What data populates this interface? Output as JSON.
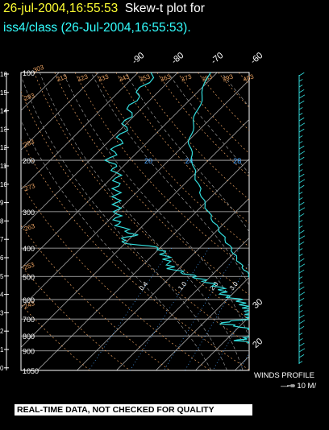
{
  "title": {
    "line1_time": "26-jul-2004,16:55:53",
    "line1_rest": "Skew-t plot for",
    "line2": "iss4/class (26-Jul-2004,16:55:53)."
  },
  "banner": "REAL-TIME DATA, NOT CHECKED FOR QUALITY",
  "winds": {
    "title": "WINDS PROFILE",
    "scale": "— = 10 M/"
  },
  "colors": {
    "background": "#000000",
    "frame": "#ffffff",
    "isotherm_isobar": "#bbbbbb",
    "dry_adiabat": "#e8a060",
    "moist_adiabat": "#aaaaaa",
    "mixing_ratio": "#4da6ff",
    "sounding": "#33dddd",
    "title_time": "#ffff33",
    "title_station": "#33ffff"
  },
  "chart_data": {
    "type": "line",
    "diagram": "skew-t",
    "pressure_levels": [
      100,
      200,
      300,
      400,
      500,
      600,
      700,
      800,
      900,
      1050
    ],
    "pressure_labels": [
      "100",
      "200",
      "300",
      "400",
      "500",
      "600",
      "700",
      "800",
      "900",
      "1050"
    ],
    "ylim_hpa": [
      1050,
      100
    ],
    "height_km_labels": [
      "16",
      "15",
      "14",
      "13",
      "12",
      "11",
      "10",
      "9",
      "8",
      "7",
      "6",
      "5",
      "4",
      "3",
      "2",
      "1",
      "0"
    ],
    "isotherm_top_labels": [
      "-90",
      "-80",
      "-70",
      "-60",
      "-50",
      "-40",
      "-30"
    ],
    "isotherm_right_labels": [
      "-20",
      "-10",
      "0",
      "10",
      "20",
      "30"
    ],
    "dry_adiabat_labels": [
      "243",
      "253",
      "263",
      "273",
      "283",
      "293",
      "303",
      "313",
      "323",
      "333",
      "343",
      "353",
      "363",
      "373",
      "383",
      "393",
      "403",
      "413",
      "423",
      "433",
      "443",
      "453"
    ],
    "mixing_ratio_labels": [
      "0.4",
      "1.0",
      "2.0",
      "3.0",
      "5.0",
      "8.0",
      "12.0",
      "20.0"
    ],
    "moist_adiabat_labels": [
      "20",
      "24",
      "28",
      "32",
      "36"
    ],
    "series": [
      {
        "name": "temperature",
        "points": [
          [
            100,
            -72
          ],
          [
            125,
            -67
          ],
          [
            150,
            -63
          ],
          [
            175,
            -59
          ],
          [
            200,
            -54
          ],
          [
            250,
            -45
          ],
          [
            300,
            -37
          ],
          [
            350,
            -29
          ],
          [
            400,
            -22
          ],
          [
            450,
            -16
          ],
          [
            500,
            -10
          ],
          [
            550,
            -6
          ],
          [
            600,
            -1
          ],
          [
            650,
            4
          ],
          [
            700,
            8
          ],
          [
            750,
            12
          ],
          [
            800,
            16
          ],
          [
            850,
            19
          ],
          [
            900,
            22
          ],
          [
            950,
            26
          ],
          [
            1000,
            29
          ]
        ]
      },
      {
        "name": "dewpoint",
        "points": [
          [
            100,
            -86
          ],
          [
            125,
            -84
          ],
          [
            150,
            -80
          ],
          [
            175,
            -77
          ],
          [
            200,
            -75
          ],
          [
            220,
            -70
          ],
          [
            250,
            -66
          ],
          [
            300,
            -60
          ],
          [
            330,
            -57
          ],
          [
            360,
            -50
          ],
          [
            380,
            -52
          ],
          [
            400,
            -40
          ],
          [
            430,
            -36
          ],
          [
            470,
            -32
          ],
          [
            500,
            -24
          ],
          [
            520,
            -20
          ],
          [
            550,
            -14
          ],
          [
            580,
            -12
          ],
          [
            600,
            -7
          ],
          [
            650,
            -2
          ],
          [
            700,
            1
          ],
          [
            720,
            -6
          ],
          [
            760,
            4
          ],
          [
            800,
            6
          ],
          [
            830,
            3
          ],
          [
            860,
            12
          ],
          [
            900,
            17
          ],
          [
            950,
            21
          ],
          [
            1000,
            24
          ]
        ]
      }
    ]
  }
}
